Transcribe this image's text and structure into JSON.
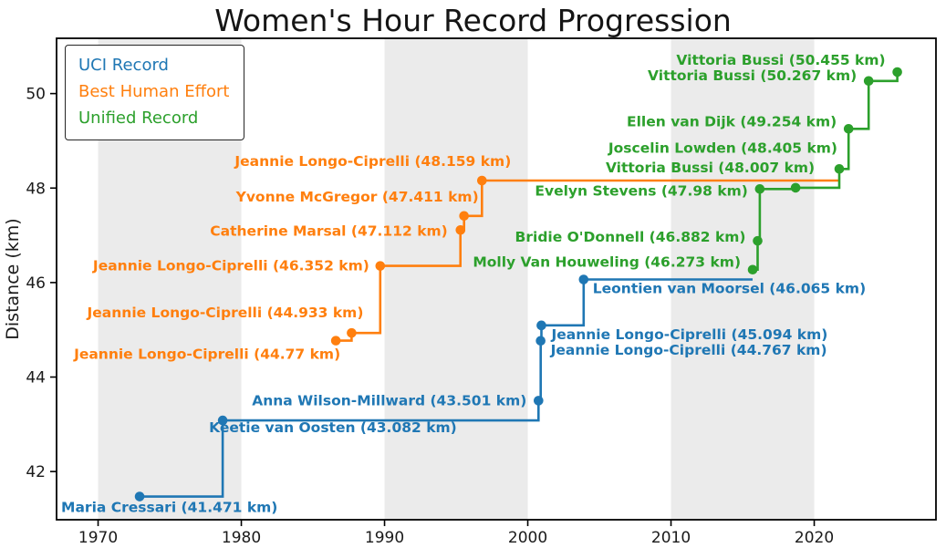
{
  "chart_data": {
    "type": "line",
    "subtype": "step-post",
    "title": "Women's Hour Record Progression",
    "xlabel": "",
    "ylabel": "Distance (km)",
    "x_ticks": [
      1970,
      1980,
      1990,
      2000,
      2010,
      2020
    ],
    "y_ticks": [
      42,
      44,
      46,
      48,
      50
    ],
    "x_range": [
      1967.1,
      2028.5
    ],
    "y_range": [
      40.98,
      51.17
    ],
    "grid": false,
    "text_color": "#1a1a1a",
    "axis_color": "#000000",
    "legend_position": "upper-left",
    "background_bands": {
      "color": "#ebebeb",
      "ranges": [
        [
          1970,
          1980
        ],
        [
          1990,
          2000
        ],
        [
          2010,
          2020
        ]
      ]
    },
    "series": [
      {
        "name": "UCI Record",
        "color": "#1f77b4",
        "extend_to": 2015.7,
        "records": [
          {
            "athlete": "Maria Cressari",
            "km": 41.471,
            "year": 1972.9,
            "label": "Maria Cressari (41.471 km)",
            "anchor": "start",
            "dx": -86,
            "dy": 17
          },
          {
            "athlete": "Keetie van Oosten",
            "km": 43.082,
            "year": 1978.7,
            "label": "Keetie van Oosten (43.082 km)",
            "anchor": "start",
            "dx": -15,
            "dy": 13
          },
          {
            "athlete": "Anna Wilson-Millward",
            "km": 43.501,
            "year": 2000.75,
            "label": "Anna Wilson-Millward (43.501 km)",
            "anchor": "end",
            "dx": -13,
            "dy": 5
          },
          {
            "athlete": "Jeannie Longo-Ciprelli",
            "km": 44.767,
            "year": 2000.9,
            "label": "Jeannie Longo-Ciprelli (44.767 km)",
            "anchor": "start",
            "dx": 11,
            "dy": 15
          },
          {
            "athlete": "Jeannie Longo-Ciprelli",
            "km": 45.094,
            "year": 2000.95,
            "label": "Jeannie Longo-Ciprelli (45.094 km)",
            "anchor": "start",
            "dx": 11,
            "dy": 15
          },
          {
            "athlete": "Leontien van Moorsel",
            "km": 46.065,
            "year": 2003.9,
            "label": "Leontien van Moorsel (46.065 km)",
            "anchor": "start",
            "dx": 10,
            "dy": 15
          }
        ]
      },
      {
        "name": "Best Human Effort",
        "color": "#ff7f0e",
        "extend_to": 2021.8,
        "records": [
          {
            "athlete": "Jeannie Longo-Ciprelli",
            "km": 44.77,
            "year": 1986.6,
            "label": "Jeannie Longo-Ciprelli (44.77 km)",
            "anchor": "end",
            "dx": 5,
            "dy": 20
          },
          {
            "athlete": "Jeannie Longo-Ciprelli",
            "km": 44.933,
            "year": 1987.7,
            "label": "Jeannie Longo-Ciprelli (44.933 km)",
            "anchor": "end",
            "dx": 13,
            "dy": -17
          },
          {
            "athlete": "Jeannie Longo-Ciprelli",
            "km": 46.352,
            "year": 1989.7,
            "label": "Jeannie Longo-Ciprelli (46.352 km)",
            "anchor": "end",
            "dx": -12,
            "dy": 5
          },
          {
            "athlete": "Catherine Marsal",
            "km": 47.112,
            "year": 1995.3,
            "label": "Catherine Marsal (47.112 km)",
            "anchor": "end",
            "dx": -14,
            "dy": 6
          },
          {
            "athlete": "Yvonne McGregor",
            "km": 47.411,
            "year": 1995.55,
            "label": "Yvonne McGregor (47.411 km)",
            "anchor": "end",
            "dx": 16,
            "dy": -16
          },
          {
            "athlete": "Jeannie Longo-Ciprelli",
            "km": 48.159,
            "year": 1996.8,
            "label": "Jeannie Longo-Ciprelli (48.159 km)",
            "anchor": "end",
            "dx": 32,
            "dy": -16
          }
        ]
      },
      {
        "name": "Unified Record",
        "color": "#2ca02c",
        "extend_to": null,
        "records": [
          {
            "athlete": "Molly Van Houweling",
            "km": 46.273,
            "year": 2015.7,
            "label": "Molly Van Houweling (46.273 km)",
            "anchor": "end",
            "dx": -13,
            "dy": -3
          },
          {
            "athlete": "Bridie O'Donnell",
            "km": 46.882,
            "year": 2016.05,
            "label": "Bridie O'Donnell (46.882 km)",
            "anchor": "end",
            "dx": -13,
            "dy": 1
          },
          {
            "athlete": "Evelyn Stevens",
            "km": 47.98,
            "year": 2016.2,
            "label": "Evelyn Stevens (47.98 km)",
            "anchor": "end",
            "dx": -13,
            "dy": 7
          },
          {
            "athlete": "Vittoria Bussi",
            "km": 48.007,
            "year": 2018.7,
            "label": "Vittoria Bussi (48.007 km)",
            "anchor": "end",
            "dx": 21,
            "dy": -17
          },
          {
            "athlete": "Joscelin Lowden",
            "km": 48.405,
            "year": 2021.75,
            "label": "Joscelin Lowden (48.405 km)",
            "anchor": "end",
            "dx": -2,
            "dy": -18
          },
          {
            "athlete": "Ellen van Dijk",
            "km": 49.254,
            "year": 2022.4,
            "label": "Ellen van Dijk (49.254 km)",
            "anchor": "end",
            "dx": -13,
            "dy": -3
          },
          {
            "athlete": "Vittoria Bussi",
            "km": 50.267,
            "year": 2023.8,
            "label": "Vittoria Bussi (50.267 km)",
            "anchor": "end",
            "dx": -13,
            "dy": -1
          },
          {
            "athlete": "Vittoria Bussi",
            "km": 50.455,
            "year": 2025.8,
            "label": "Vittoria Bussi (50.455 km)",
            "anchor": "end",
            "dx": -13,
            "dy": -8
          }
        ]
      }
    ]
  }
}
